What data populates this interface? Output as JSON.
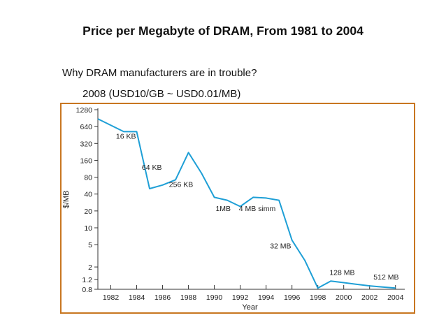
{
  "slide": {
    "title": "Price per Megabyte of DRAM, From 1981 to 2004",
    "line1": "Why DRAM manufacturers are in trouble?",
    "line2": "2008 (USD10/GB ~ USD0.01/MB)"
  },
  "colors": {
    "line": "#1e9fd6",
    "frame": "#c87620",
    "axis": "#333333"
  },
  "chart_data": {
    "type": "line",
    "xlabel": "Year",
    "ylabel": "$/MB",
    "yscale": "log",
    "xlim": [
      1981,
      2004.5
    ],
    "ylim": [
      0.8,
      1280
    ],
    "xticks": [
      1982,
      1984,
      1986,
      1988,
      1990,
      1992,
      1994,
      1996,
      1998,
      2000,
      2002,
      2004
    ],
    "xtick_labels": [
      "1982",
      "1984",
      "1986",
      "1988",
      "1990",
      "1992",
      "1994",
      "1996",
      "1998",
      "2000",
      "2002",
      "2004"
    ],
    "yticks": [
      0.8,
      1.2,
      2,
      5,
      10,
      20,
      40,
      80,
      160,
      320,
      640,
      1280
    ],
    "ytick_labels": [
      "0.8",
      "1.2",
      "2",
      "5",
      "10",
      "20",
      "40",
      "80",
      "160",
      "320",
      "640",
      "1280"
    ],
    "series": [
      {
        "x": [
          1981,
          1983,
          1984,
          1985,
          1986,
          1987,
          1988,
          1989,
          1990,
          1991,
          1992,
          1993,
          1994,
          1995,
          1996,
          1997,
          1998,
          1999,
          2000,
          2001,
          2002,
          2003,
          2004
        ],
        "values": [
          880,
          520,
          520,
          50,
          58,
          72,
          220,
          95,
          35,
          31,
          24,
          35,
          34,
          31,
          6,
          2.6,
          0.84,
          1.12,
          1.05,
          0.98,
          0.92,
          0.88,
          0.84
        ]
      }
    ],
    "annotations": [
      {
        "text": "16 KB",
        "x": 1982.4,
        "y": 390
      },
      {
        "text": "64 KB",
        "x": 1984.4,
        "y": 108
      },
      {
        "text": "256 KB",
        "x": 1986.5,
        "y": 54
      },
      {
        "text": "1MB",
        "x": 1990.1,
        "y": 20
      },
      {
        "text": "4 MB simm",
        "x": 1991.9,
        "y": 20
      },
      {
        "text": "32 MB",
        "x": 1994.3,
        "y": 4.3
      },
      {
        "text": "128 MB",
        "x": 1998.9,
        "y": 1.45
      },
      {
        "text": "512 MB",
        "x": 2002.3,
        "y": 1.2
      }
    ]
  }
}
